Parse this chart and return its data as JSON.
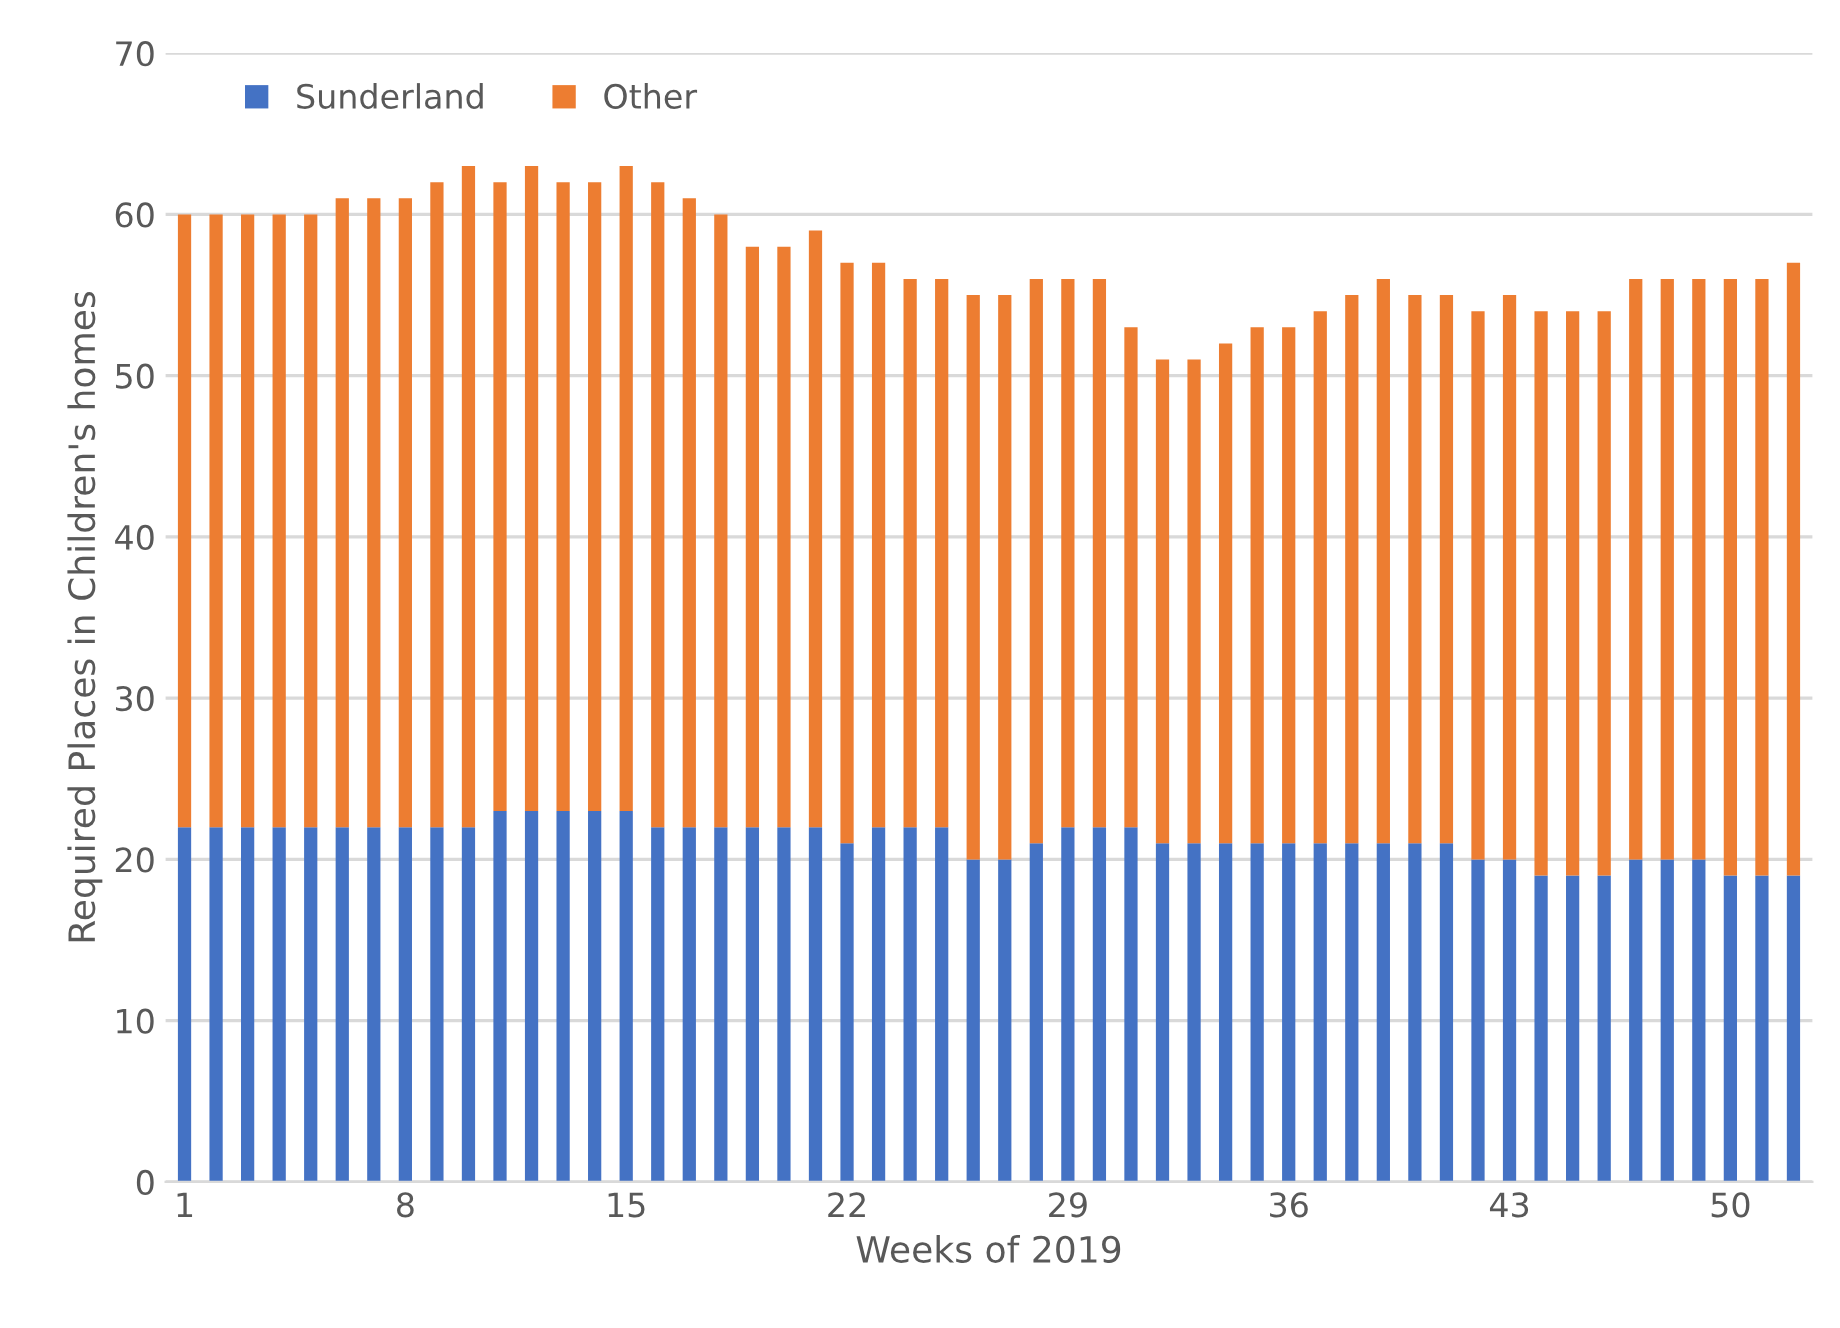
{
  "chart_data": {
    "type": "bar",
    "stacked": true,
    "xlabel": "Weeks of 2019",
    "ylabel": "Required Places in Children's homes",
    "categories": [
      "1",
      null,
      null,
      null,
      null,
      null,
      null,
      "8",
      null,
      null,
      null,
      null,
      null,
      null,
      "15",
      null,
      null,
      null,
      null,
      null,
      null,
      "22",
      null,
      null,
      null,
      null,
      null,
      null,
      "29",
      null,
      null,
      null,
      null,
      null,
      null,
      "36",
      null,
      null,
      null,
      null,
      null,
      null,
      "43",
      null,
      null,
      null,
      null,
      null,
      null,
      "50",
      null,
      null
    ],
    "series": [
      {
        "name": "Sunderland",
        "color": "#4472c4",
        "values": [
          22,
          22,
          22,
          22,
          22,
          22,
          22,
          22,
          22,
          22,
          23,
          23,
          23,
          23,
          23,
          22,
          22,
          22,
          22,
          22,
          22,
          21,
          22,
          22,
          22,
          20,
          20,
          21,
          22,
          22,
          22,
          21,
          21,
          21,
          21,
          21,
          21,
          21,
          21,
          21,
          21,
          20,
          20,
          19,
          19,
          19,
          20,
          20,
          20,
          19,
          19,
          19
        ]
      },
      {
        "name": "Other",
        "color": "#ed7d31",
        "values": [
          38,
          38,
          38,
          38,
          38,
          39,
          39,
          39,
          40,
          41,
          39,
          40,
          39,
          39,
          40,
          40,
          39,
          38,
          36,
          36,
          37,
          36,
          35,
          34,
          34,
          35,
          35,
          35,
          34,
          34,
          31,
          30,
          30,
          31,
          32,
          32,
          33,
          34,
          35,
          34,
          34,
          34,
          35,
          35,
          35,
          35,
          36,
          36,
          36,
          37,
          37,
          38
        ]
      }
    ],
    "ylim": [
      0,
      70
    ],
    "yticks": [
      0,
      10,
      20,
      30,
      40,
      50,
      60,
      70
    ],
    "grid": "y",
    "legend": "top left"
  }
}
